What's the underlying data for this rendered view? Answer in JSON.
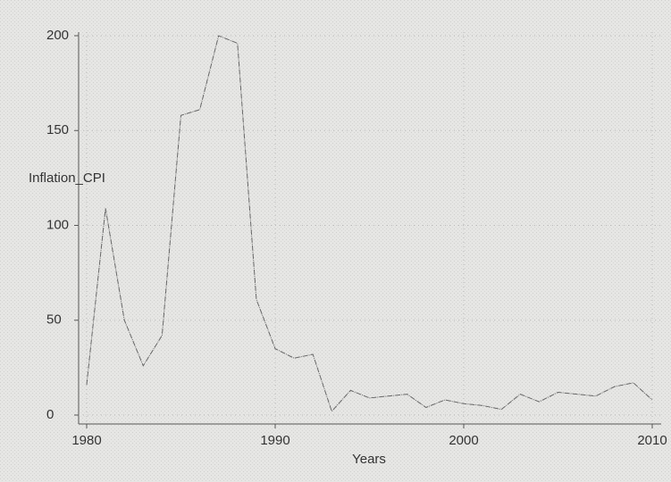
{
  "chart_data": {
    "type": "line",
    "ylabel": "Inflation_CPI",
    "xlabel": "Years",
    "x": [
      1980,
      1981,
      1982,
      1983,
      1984,
      1985,
      1986,
      1987,
      1988,
      1989,
      1990,
      1991,
      1992,
      1993,
      1994,
      1995,
      1996,
      1997,
      1998,
      1999,
      2000,
      2001,
      2002,
      2003,
      2004,
      2005,
      2006,
      2007,
      2008,
      2009,
      2010
    ],
    "series": [
      {
        "name": "Inflation_CPI",
        "color": "#666666",
        "values": [
          16,
          109,
          50,
          26,
          42,
          158,
          161,
          200,
          196,
          61,
          35,
          30,
          32,
          2,
          13,
          9,
          10,
          11,
          4,
          8,
          6,
          5,
          3,
          11,
          7,
          12,
          11,
          10,
          15,
          17,
          8
        ]
      }
    ],
    "xlim": [
      1980,
      2010
    ],
    "xticks": [
      1980,
      1990,
      2000,
      2010
    ],
    "ylim": [
      0,
      200
    ],
    "yticks": [
      0,
      50,
      100,
      150,
      200
    ],
    "grid": true
  }
}
